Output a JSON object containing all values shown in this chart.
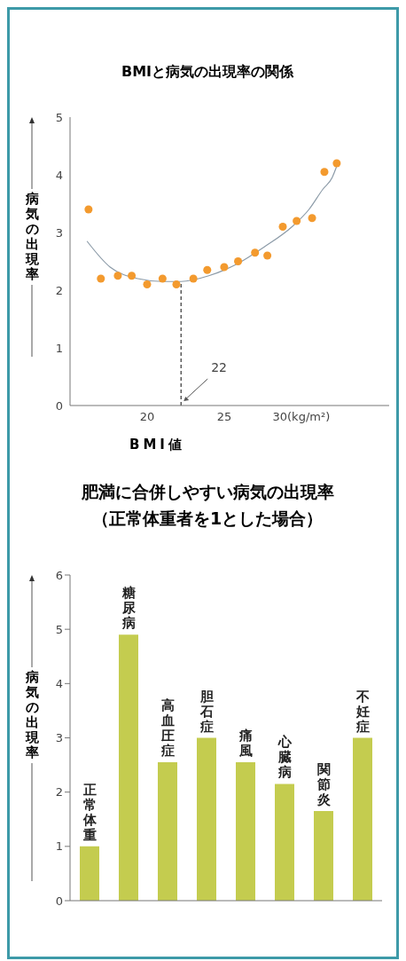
{
  "chart_data": [
    {
      "type": "scatter",
      "title": "BMIと病気の出現率の関係",
      "xlabel": "BMI値",
      "ylabel": "病気の出現率",
      "xlim": [
        15,
        35.7
      ],
      "xticks": [
        20,
        25,
        {
          "value": 30,
          "label": "30(kg/m²)"
        }
      ],
      "ylim": [
        0,
        5
      ],
      "yticks": [
        0,
        1,
        2,
        3,
        4,
        5
      ],
      "grid": false,
      "series": [
        {
          "type": "scatter",
          "marker": "circle",
          "color": "#f39a2e",
          "x": [
            16.2,
            17,
            18.1,
            19,
            20,
            21,
            21.9,
            23,
            23.9,
            25,
            25.9,
            27,
            27.8,
            28.8,
            29.7,
            30.7,
            31.5,
            32.3
          ],
          "values": [
            3.4,
            2.2,
            2.25,
            2.25,
            2.1,
            2.2,
            2.1,
            2.2,
            2.35,
            2.4,
            2.5,
            2.65,
            2.6,
            3.1,
            3.2,
            3.25,
            4.05,
            4.2
          ]
        },
        {
          "type": "line",
          "marker": "none",
          "color": "#8c9ba8",
          "x": [
            16.1,
            17.6,
            19.4,
            21,
            22.2,
            24,
            25.8,
            27.6,
            29.4,
            30.5,
            31.4,
            32,
            32.3
          ],
          "values": [
            2.85,
            2.4,
            2.2,
            2.15,
            2.15,
            2.25,
            2.45,
            2.75,
            3.1,
            3.4,
            3.75,
            3.95,
            4.15
          ]
        }
      ],
      "ref_lines": [
        {
          "axis": "x",
          "value": 22.2,
          "label": "22",
          "line_style": "dashed",
          "color": "#333333"
        }
      ]
    },
    {
      "type": "bar",
      "title": "肥満に合併しやすい病気の出現率",
      "subtitle": "（正常体重者を1とした場合）",
      "ylabel": "病気の出現率",
      "categories": [
        "正常体重",
        "糖尿病",
        "高血圧症",
        "胆石症",
        "痛風",
        "心臓病",
        "関節炎",
        "不妊症"
      ],
      "values": [
        1.0,
        4.9,
        2.55,
        3.0,
        2.55,
        2.15,
        1.65,
        3.0
      ],
      "color": "#c4cc4f",
      "ylim": [
        0,
        6
      ],
      "yticks": [
        0,
        1,
        2,
        3,
        4,
        5,
        6
      ],
      "grid": false
    }
  ]
}
